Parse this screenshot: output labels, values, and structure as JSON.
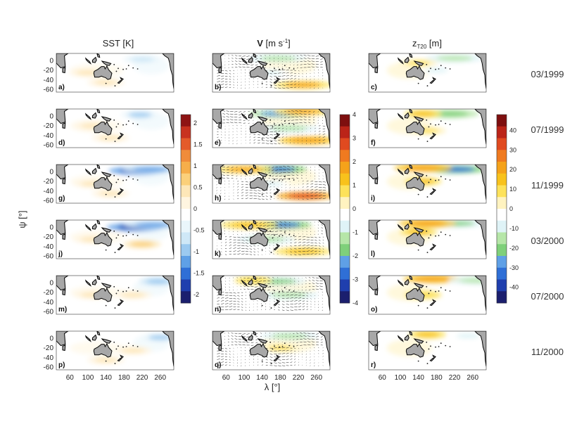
{
  "chart_data": {
    "type": "heatmap",
    "layout": "6 rows x 3 columns of map panels",
    "columns": [
      {
        "key": "sst",
        "title_main": "SST [K]",
        "title_bold": "",
        "title_sub": "",
        "title_sup": ""
      },
      {
        "key": "v",
        "title_main": " [m s",
        "title_bold": "V",
        "title_sub": "",
        "title_sup": "-1",
        "title_end": "]"
      },
      {
        "key": "z",
        "title_main": "z",
        "title_bold": "",
        "title_sub": "T20",
        "title_sup": "",
        "title_end": " [m]"
      }
    ],
    "dates": [
      "03/1999",
      "07/1999",
      "11/1999",
      "03/2000",
      "07/2000",
      "11/2000"
    ],
    "panel_labels": [
      "a)",
      "b)",
      "c)",
      "d)",
      "e)",
      "f)",
      "g)",
      "h)",
      "i)",
      "j)",
      "k)",
      "l)",
      "m)",
      "n)",
      "o)",
      "p)",
      "q)",
      "r)"
    ],
    "x_ticks": [
      "60",
      "100",
      "140",
      "180",
      "220",
      "260"
    ],
    "x_tick_values": [
      60,
      100,
      140,
      180,
      220,
      260
    ],
    "xlim": [
      30,
      290
    ],
    "y_ticks": [
      "0",
      "-20",
      "-40",
      "-60"
    ],
    "y_tick_values": [
      0,
      -20,
      -40,
      -60
    ],
    "ylim": [
      -65,
      15
    ],
    "xlabel": "λ [°]",
    "ylabel": "ψ [°]",
    "colorbars": [
      {
        "column": "sst",
        "ticks": [
          "2",
          "1.5",
          "1",
          "0.5",
          "0",
          "-0.5",
          "-1",
          "-1.5",
          "-2"
        ],
        "range": [
          -2.2,
          2.2
        ],
        "colors": [
          "#1b1f6e",
          "#1f3fae",
          "#2f6fd6",
          "#5fa0e6",
          "#9ccaf0",
          "#cfe8f7",
          "#eaf6fb",
          "#ffffff",
          "#fff5e0",
          "#fde7b8",
          "#fbd07a",
          "#f6ae4a",
          "#f08c3a",
          "#e45b2a",
          "#c8321f",
          "#8e1414"
        ]
      },
      {
        "column": "v",
        "ticks": [
          "4",
          "3",
          "2",
          "1",
          "0",
          "-1",
          "-2",
          "-3",
          "-4"
        ],
        "range": [
          -4,
          4
        ],
        "colors": [
          "#1b1f6e",
          "#1f3fae",
          "#2f6fd6",
          "#5fa0e6",
          "#7fd07a",
          "#b6e6a8",
          "#dff3f7",
          "#ffffff",
          "#fff3c0",
          "#fde25a",
          "#f8c21c",
          "#f5a21a",
          "#ef7a20",
          "#e04a20",
          "#bb2418",
          "#7e0f0f"
        ]
      },
      {
        "column": "z",
        "ticks": [
          "40",
          "30",
          "20",
          "10",
          "0",
          "-10",
          "-20",
          "-30",
          "-40"
        ],
        "range": [
          -48,
          48
        ],
        "colors": [
          "#1b1f6e",
          "#1f3fae",
          "#2f6fd6",
          "#5fa0e6",
          "#7fd07a",
          "#b6e6a8",
          "#dff3f7",
          "#ffffff",
          "#fff3c0",
          "#fde25a",
          "#f8c21c",
          "#f5a21a",
          "#ef7a20",
          "#e04a20",
          "#bb2418",
          "#7e0f0f"
        ]
      }
    ],
    "anomalies": {
      "sst": [
        [
          {
            "lon": 220,
            "lat": 3,
            "val": -0.8
          },
          {
            "lon": 100,
            "lat": -25,
            "val": 0.3
          },
          {
            "lon": 140,
            "lat": -45,
            "val": 0.3
          }
        ],
        [
          {
            "lon": 215,
            "lat": 3,
            "val": -0.9
          },
          {
            "lon": 110,
            "lat": -20,
            "val": 0.3
          },
          {
            "lon": 150,
            "lat": -45,
            "val": 0.3
          }
        ],
        [
          {
            "lon": 210,
            "lat": 2,
            "val": -1.9
          },
          {
            "lon": 240,
            "lat": 5,
            "val": -1.2
          },
          {
            "lon": 110,
            "lat": -25,
            "val": 0.4
          },
          {
            "lon": 150,
            "lat": -45,
            "val": 0.3
          }
        ],
        [
          {
            "lon": 205,
            "lat": 0,
            "val": -1.9
          },
          {
            "lon": 245,
            "lat": 5,
            "val": -1.3
          },
          {
            "lon": 220,
            "lat": -35,
            "val": 0.6
          },
          {
            "lon": 110,
            "lat": -25,
            "val": 0.3
          }
        ],
        [
          {
            "lon": 255,
            "lat": 3,
            "val": -1.0
          },
          {
            "lon": 200,
            "lat": -25,
            "val": 0.3
          },
          {
            "lon": 110,
            "lat": -25,
            "val": 0.3
          }
        ],
        [
          {
            "lon": 260,
            "lat": 2,
            "val": -0.9
          },
          {
            "lon": 200,
            "lat": -25,
            "val": 0.3
          },
          {
            "lon": 140,
            "lat": -45,
            "val": 0.4
          }
        ]
      ],
      "v": [
        [
          {
            "lon": 175,
            "lat": 5,
            "val": -1.5
          },
          {
            "lon": 230,
            "lat": -50,
            "val": 1.6
          },
          {
            "lon": 160,
            "lat": -25,
            "val": -0.8
          }
        ],
        [
          {
            "lon": 175,
            "lat": 5,
            "val": -2.5
          },
          {
            "lon": 230,
            "lat": 10,
            "val": 1.6
          },
          {
            "lon": 240,
            "lat": -50,
            "val": 1.8
          },
          {
            "lon": 200,
            "lat": -25,
            "val": -1.2
          }
        ],
        [
          {
            "lon": 175,
            "lat": 5,
            "val": -3.0
          },
          {
            "lon": 100,
            "lat": 5,
            "val": 1.5
          },
          {
            "lon": 235,
            "lat": -50,
            "val": 2.8
          },
          {
            "lon": 160,
            "lat": -25,
            "val": -0.8
          }
        ],
        [
          {
            "lon": 185,
            "lat": 5,
            "val": -3.0
          },
          {
            "lon": 110,
            "lat": 5,
            "val": 1.3
          },
          {
            "lon": 150,
            "lat": -25,
            "val": -1.4
          },
          {
            "lon": 230,
            "lat": -50,
            "val": 1.2
          }
        ],
        [
          {
            "lon": 175,
            "lat": 3,
            "val": -1.6
          },
          {
            "lon": 200,
            "lat": -25,
            "val": -1.3
          },
          {
            "lon": 120,
            "lat": 5,
            "val": 0.9
          }
        ],
        [
          {
            "lon": 200,
            "lat": 5,
            "val": -1.2
          },
          {
            "lon": 180,
            "lat": -20,
            "val": 0.8
          }
        ]
      ],
      "z": [
        [
          {
            "lon": 220,
            "lat": 5,
            "val": -18
          },
          {
            "lon": 140,
            "lat": -5,
            "val": 8
          },
          {
            "lon": 180,
            "lat": -20,
            "val": -10
          }
        ],
        [
          {
            "lon": 210,
            "lat": 5,
            "val": -22
          },
          {
            "lon": 150,
            "lat": 5,
            "val": 14
          },
          {
            "lon": 160,
            "lat": -30,
            "val": 8
          }
        ],
        [
          {
            "lon": 225,
            "lat": 5,
            "val": -32
          },
          {
            "lon": 150,
            "lat": 8,
            "val": 22
          },
          {
            "lon": 150,
            "lat": -20,
            "val": 14
          }
        ],
        [
          {
            "lon": 225,
            "lat": 8,
            "val": -20
          },
          {
            "lon": 160,
            "lat": 8,
            "val": 20
          },
          {
            "lon": 140,
            "lat": -10,
            "val": 14
          }
        ],
        [
          {
            "lon": 170,
            "lat": 8,
            "val": 22
          },
          {
            "lon": 270,
            "lat": 5,
            "val": -16
          },
          {
            "lon": 150,
            "lat": -25,
            "val": 10
          }
        ],
        [
          {
            "lon": 160,
            "lat": 8,
            "val": 12
          },
          {
            "lon": 250,
            "lat": 5,
            "val": -8
          }
        ]
      ]
    }
  }
}
